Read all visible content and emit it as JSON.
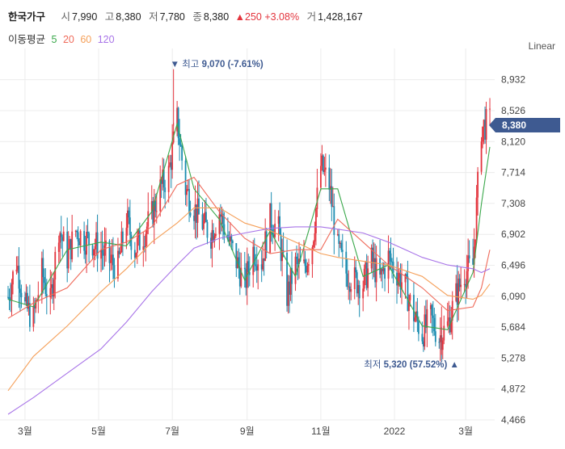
{
  "header": {
    "name": "한국가구",
    "open_label": "시",
    "open": "7,990",
    "high_label": "고",
    "high": "8,380",
    "low_label": "저",
    "low": "7,780",
    "close_label": "종",
    "close": "8,380",
    "change": "▲250 +3.08%",
    "volume_label": "거",
    "volume": "1,428,167"
  },
  "ma_legend": {
    "title": "이동평균",
    "periods": [
      {
        "label": "5",
        "color": "#3aa84b"
      },
      {
        "label": "20",
        "color": "#ef6b5b"
      },
      {
        "label": "60",
        "color": "#f5a05a"
      },
      {
        "label": "120",
        "color": "#a874e8"
      }
    ]
  },
  "scale_toggle": "Linear",
  "price_tag": "8,380",
  "annotations": {
    "high": {
      "prefix": "▼ 최고",
      "value": "9,070 (-7.61%)"
    },
    "low": {
      "prefix": "최저",
      "value": "5,320 (57.52%)",
      "suffix": "▲"
    }
  },
  "colors": {
    "up": "#e3343d",
    "down": "#1a8cb0",
    "grid": "#ececec",
    "accent": "#3e5a91"
  },
  "chart_data": {
    "type": "candlestick",
    "y_ticks": [
      8932,
      8526,
      8120,
      7714,
      7308,
      6902,
      6496,
      6090,
      5684,
      5278,
      4872,
      4466
    ],
    "y_tick_labels": [
      "8,932",
      "8,526",
      "8,120",
      "7,714",
      "7,308",
      "6,902",
      "6,496",
      "6,090",
      "5,684",
      "5,278",
      "4,872",
      "4,466"
    ],
    "ylim": [
      4466,
      9300
    ],
    "x_tick_labels": [
      "3월",
      "5월",
      "7월",
      "9월",
      "11월",
      "2022",
      "3월"
    ],
    "x_tick_dates": [
      "2021-03-01",
      "2021-05-01",
      "2021-07-01",
      "2021-09-01",
      "2021-11-01",
      "2022-01-01",
      "2022-03-01"
    ],
    "x_range": [
      "2021-02-15",
      "2022-03-25"
    ],
    "series_close": [
      [
        "2021-02-15",
        6080
      ],
      [
        "2021-02-22",
        6550
      ],
      [
        "2021-03-01",
        5950
      ],
      [
        "2021-03-08",
        5800
      ],
      [
        "2021-03-15",
        6400
      ],
      [
        "2021-03-22",
        6000
      ],
      [
        "2021-03-29",
        7000
      ],
      [
        "2021-04-05",
        6600
      ],
      [
        "2021-04-12",
        6950
      ],
      [
        "2021-04-19",
        6850
      ],
      [
        "2021-04-26",
        6800
      ],
      [
        "2021-05-03",
        6700
      ],
      [
        "2021-05-10",
        6550
      ],
      [
        "2021-05-17",
        6480
      ],
      [
        "2021-05-24",
        7100
      ],
      [
        "2021-05-31",
        6700
      ],
      [
        "2021-06-07",
        6900
      ],
      [
        "2021-06-14",
        7150
      ],
      [
        "2021-06-21",
        7500
      ],
      [
        "2021-06-28",
        7700
      ],
      [
        "2021-07-05",
        8400
      ],
      [
        "2021-07-12",
        7500
      ],
      [
        "2021-07-19",
        7250
      ],
      [
        "2021-07-26",
        7050
      ],
      [
        "2021-08-02",
        6900
      ],
      [
        "2021-08-09",
        7200
      ],
      [
        "2021-08-16",
        6850
      ],
      [
        "2021-08-23",
        6550
      ],
      [
        "2021-08-30",
        6250
      ],
      [
        "2021-09-06",
        6700
      ],
      [
        "2021-09-13",
        6550
      ],
      [
        "2021-09-20",
        7100
      ],
      [
        "2021-09-27",
        6950
      ],
      [
        "2021-10-04",
        6100
      ],
      [
        "2021-10-11",
        6500
      ],
      [
        "2021-10-18",
        6450
      ],
      [
        "2021-10-25",
        6800
      ],
      [
        "2021-11-01",
        7800
      ],
      [
        "2021-11-08",
        7550
      ],
      [
        "2021-11-15",
        6700
      ],
      [
        "2021-11-22",
        6400
      ],
      [
        "2021-11-29",
        6300
      ],
      [
        "2021-12-06",
        6250
      ],
      [
        "2021-12-13",
        6550
      ],
      [
        "2021-12-20",
        6300
      ],
      [
        "2021-12-27",
        6600
      ],
      [
        "2022-01-03",
        6400
      ],
      [
        "2022-01-10",
        6200
      ],
      [
        "2022-01-17",
        5850
      ],
      [
        "2022-01-24",
        5600
      ],
      [
        "2022-01-31",
        5800
      ],
      [
        "2022-02-07",
        5550
      ],
      [
        "2022-02-14",
        5700
      ],
      [
        "2022-02-21",
        6100
      ],
      [
        "2022-02-28",
        6400
      ],
      [
        "2022-03-07",
        6500
      ],
      [
        "2022-03-14",
        8300
      ],
      [
        "2022-03-21",
        8380
      ]
    ],
    "extremes": {
      "high": {
        "date": "2021-07-02",
        "value": 9070
      },
      "low": {
        "date": "2022-02-09",
        "value": 5320
      }
    },
    "moving_averages": [
      {
        "period": 5,
        "points": [
          [
            "2021-02-15",
            6050
          ],
          [
            "2021-03-08",
            5950
          ],
          [
            "2021-04-05",
            6700
          ],
          [
            "2021-05-03",
            6800
          ],
          [
            "2021-05-24",
            6750
          ],
          [
            "2021-06-14",
            7200
          ],
          [
            "2021-07-05",
            8350
          ],
          [
            "2021-07-19",
            7500
          ],
          [
            "2021-08-09",
            7100
          ],
          [
            "2021-08-30",
            6300
          ],
          [
            "2021-09-20",
            6950
          ],
          [
            "2021-10-11",
            6350
          ],
          [
            "2021-11-01",
            7500
          ],
          [
            "2021-11-15",
            7500
          ],
          [
            "2021-12-06",
            6350
          ],
          [
            "2021-12-27",
            6500
          ],
          [
            "2022-01-24",
            5700
          ],
          [
            "2022-02-14",
            5650
          ],
          [
            "2022-03-07",
            6400
          ],
          [
            "2022-03-14",
            7300
          ],
          [
            "2022-03-21",
            8050
          ]
        ]
      },
      {
        "period": 20,
        "points": [
          [
            "2021-02-15",
            5800
          ],
          [
            "2021-03-08",
            6000
          ],
          [
            "2021-04-05",
            6200
          ],
          [
            "2021-05-03",
            6700
          ],
          [
            "2021-05-24",
            6800
          ],
          [
            "2021-06-14",
            7000
          ],
          [
            "2021-07-05",
            7550
          ],
          [
            "2021-07-19",
            7650
          ],
          [
            "2021-08-09",
            7200
          ],
          [
            "2021-08-30",
            6850
          ],
          [
            "2021-09-20",
            6650
          ],
          [
            "2021-10-11",
            6700
          ],
          [
            "2021-11-01",
            6700
          ],
          [
            "2021-11-15",
            7100
          ],
          [
            "2021-12-06",
            6800
          ],
          [
            "2021-12-27",
            6500
          ],
          [
            "2022-01-24",
            6200
          ],
          [
            "2022-02-14",
            5900
          ],
          [
            "2022-03-07",
            5950
          ],
          [
            "2022-03-14",
            6200
          ],
          [
            "2022-03-21",
            6700
          ]
        ]
      },
      {
        "period": 60,
        "points": [
          [
            "2021-02-15",
            4850
          ],
          [
            "2021-03-08",
            5300
          ],
          [
            "2021-04-05",
            5700
          ],
          [
            "2021-05-03",
            6150
          ],
          [
            "2021-05-24",
            6450
          ],
          [
            "2021-06-14",
            6800
          ],
          [
            "2021-07-05",
            7050
          ],
          [
            "2021-07-19",
            7250
          ],
          [
            "2021-08-09",
            7250
          ],
          [
            "2021-08-30",
            7050
          ],
          [
            "2021-09-20",
            6950
          ],
          [
            "2021-10-11",
            6800
          ],
          [
            "2021-11-01",
            6650
          ],
          [
            "2021-11-15",
            6600
          ],
          [
            "2021-12-06",
            6550
          ],
          [
            "2021-12-27",
            6500
          ],
          [
            "2022-01-24",
            6350
          ],
          [
            "2022-02-14",
            6100
          ],
          [
            "2022-03-07",
            6050
          ],
          [
            "2022-03-14",
            6100
          ],
          [
            "2022-03-21",
            6250
          ]
        ]
      },
      {
        "period": 120,
        "points": [
          [
            "2021-02-15",
            4540
          ],
          [
            "2021-03-08",
            4760
          ],
          [
            "2021-04-05",
            5080
          ],
          [
            "2021-05-03",
            5400
          ],
          [
            "2021-05-24",
            5750
          ],
          [
            "2021-06-14",
            6150
          ],
          [
            "2021-07-05",
            6500
          ],
          [
            "2021-07-19",
            6720
          ],
          [
            "2021-08-09",
            6850
          ],
          [
            "2021-08-30",
            6920
          ],
          [
            "2021-09-20",
            6980
          ],
          [
            "2021-10-11",
            7000
          ],
          [
            "2021-11-01",
            7000
          ],
          [
            "2021-11-15",
            6970
          ],
          [
            "2021-12-06",
            6920
          ],
          [
            "2021-12-27",
            6800
          ],
          [
            "2022-01-24",
            6600
          ],
          [
            "2022-02-14",
            6500
          ],
          [
            "2022-03-07",
            6450
          ],
          [
            "2022-03-14",
            6400
          ],
          [
            "2022-03-21",
            6450
          ]
        ]
      }
    ],
    "grid": true
  }
}
